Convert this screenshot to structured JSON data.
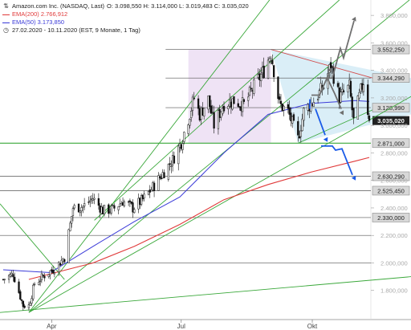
{
  "legend": {
    "title": "Amazon.com Inc. (NASDAQ, Last)",
    "ohlc": "O: 3.098,550  H: 3.114,000  L: 3.019,483  C: 3.035,020",
    "ema200": "EMA(200)  2.766,912",
    "ema50": "EMA(50)  3.173,850",
    "period": "27.02.2020 - 10.11.2020  (EST, 9 Monate, 1 Tag)"
  },
  "colors": {
    "ema200": "#e03a3a",
    "ema50": "#3a3ad8",
    "trend_green": "#3aa83a",
    "up_arrow": "#707070",
    "down_arrow": "#1a5be8",
    "triangle_fill": "#d6ecf6",
    "range_fill": "#efe3f5",
    "triangle_upper": "#d24a4a"
  },
  "chart_data": {
    "type": "candlestick",
    "instrument": "Amazon.com Inc. (NASDAQ)",
    "date_range": [
      "2020-02-27",
      "2020-11-10"
    ],
    "ylim": [
      1600,
      3900
    ],
    "y_ticks": [
      1600,
      1800,
      2000,
      2200,
      2400,
      2600,
      2800,
      3000,
      3200,
      3400,
      3600,
      3800
    ],
    "y_tick_labels": [
      "1.600,000",
      "1.800,000",
      "2.000,000",
      "2.200,000",
      "2.400,000",
      "2.600,000",
      "2.800,000",
      "3.000,000",
      "3.200,000",
      "3.400,000",
      "3.600,000",
      "3.800,000"
    ],
    "x_labels": [
      {
        "label": "Apr",
        "date": "2020-04-01"
      },
      {
        "label": "Jul",
        "date": "2020-07-01"
      },
      {
        "label": "Okt",
        "date": "2020-10-01"
      }
    ],
    "ohlc_last": {
      "open": 3098.55,
      "high": 3114.0,
      "low": 3019.483,
      "close": 3035.02
    },
    "close_path": [
      [
        "2020-02-27",
        1880
      ],
      [
        "2020-03-05",
        1920
      ],
      [
        "2020-03-12",
        1690
      ],
      [
        "2020-03-16",
        1690
      ],
      [
        "2020-03-20",
        1850
      ],
      [
        "2020-03-27",
        1910
      ],
      [
        "2020-04-03",
        1960
      ],
      [
        "2020-04-10",
        2040
      ],
      [
        "2020-04-16",
        2400
      ],
      [
        "2020-04-23",
        2410
      ],
      [
        "2020-04-30",
        2470
      ],
      [
        "2020-05-07",
        2380
      ],
      [
        "2020-05-14",
        2390
      ],
      [
        "2020-05-21",
        2450
      ],
      [
        "2020-05-28",
        2400
      ],
      [
        "2020-06-04",
        2460
      ],
      [
        "2020-06-11",
        2550
      ],
      [
        "2020-06-18",
        2650
      ],
      [
        "2020-06-25",
        2750
      ],
      [
        "2020-07-01",
        2880
      ],
      [
        "2020-07-06",
        3050
      ],
      [
        "2020-07-10",
        3200
      ],
      [
        "2020-07-14",
        3080
      ],
      [
        "2020-07-20",
        3190
      ],
      [
        "2020-07-24",
        3000
      ],
      [
        "2020-07-31",
        3160
      ],
      [
        "2020-08-07",
        3180
      ],
      [
        "2020-08-14",
        3150
      ],
      [
        "2020-08-21",
        3280
      ],
      [
        "2020-08-28",
        3400
      ],
      [
        "2020-09-02",
        3530
      ],
      [
        "2020-09-08",
        3150
      ],
      [
        "2020-09-14",
        3100
      ],
      [
        "2020-09-21",
        2900
      ],
      [
        "2020-09-25",
        3100
      ],
      [
        "2020-10-02",
        3180
      ],
      [
        "2020-10-09",
        3280
      ],
      [
        "2020-10-14",
        3440
      ],
      [
        "2020-10-20",
        3200
      ],
      [
        "2020-10-27",
        3280
      ],
      [
        "2020-10-30",
        3030
      ],
      [
        "2020-11-04",
        3250
      ],
      [
        "2020-11-06",
        3320
      ],
      [
        "2020-11-10",
        3035
      ]
    ],
    "ema50_path": [
      [
        "2020-02-27",
        1950
      ],
      [
        "2020-03-31",
        1930
      ],
      [
        "2020-04-30",
        2120
      ],
      [
        "2020-05-29",
        2300
      ],
      [
        "2020-06-30",
        2480
      ],
      [
        "2020-07-31",
        2800
      ],
      [
        "2020-08-31",
        3080
      ],
      [
        "2020-09-30",
        3160
      ],
      [
        "2020-10-31",
        3180
      ],
      [
        "2020-11-10",
        3173.85
      ]
    ],
    "ema200_path": [
      [
        "2020-03-16",
        1880
      ],
      [
        "2020-04-30",
        2000
      ],
      [
        "2020-05-29",
        2120
      ],
      [
        "2020-06-30",
        2280
      ],
      [
        "2020-07-31",
        2460
      ],
      [
        "2020-08-31",
        2570
      ],
      [
        "2020-09-30",
        2660
      ],
      [
        "2020-10-31",
        2740
      ],
      [
        "2020-11-10",
        2766.912
      ]
    ],
    "horizontal_levels": [
      {
        "label": "3.552,250",
        "value": 3552.25,
        "style": "dark"
      },
      {
        "label": "3.344,290",
        "value": 3344.29,
        "style": "dark"
      },
      {
        "label": "3.128,990",
        "value": 3128.99,
        "style": "dark"
      },
      {
        "label": "2.871,000",
        "value": 2871.0,
        "style": "green"
      },
      {
        "label": "2.630,290",
        "value": 2630.29,
        "style": "dark"
      },
      {
        "label": "2.525,450",
        "value": 2525.45,
        "style": "dark"
      },
      {
        "label": "2.330,000",
        "value": 2330.0,
        "style": "dark"
      }
    ],
    "current_price_label": "3.035,020",
    "current_price": 3035.02,
    "extra_level_lines": [
      2000,
      2200
    ]
  }
}
